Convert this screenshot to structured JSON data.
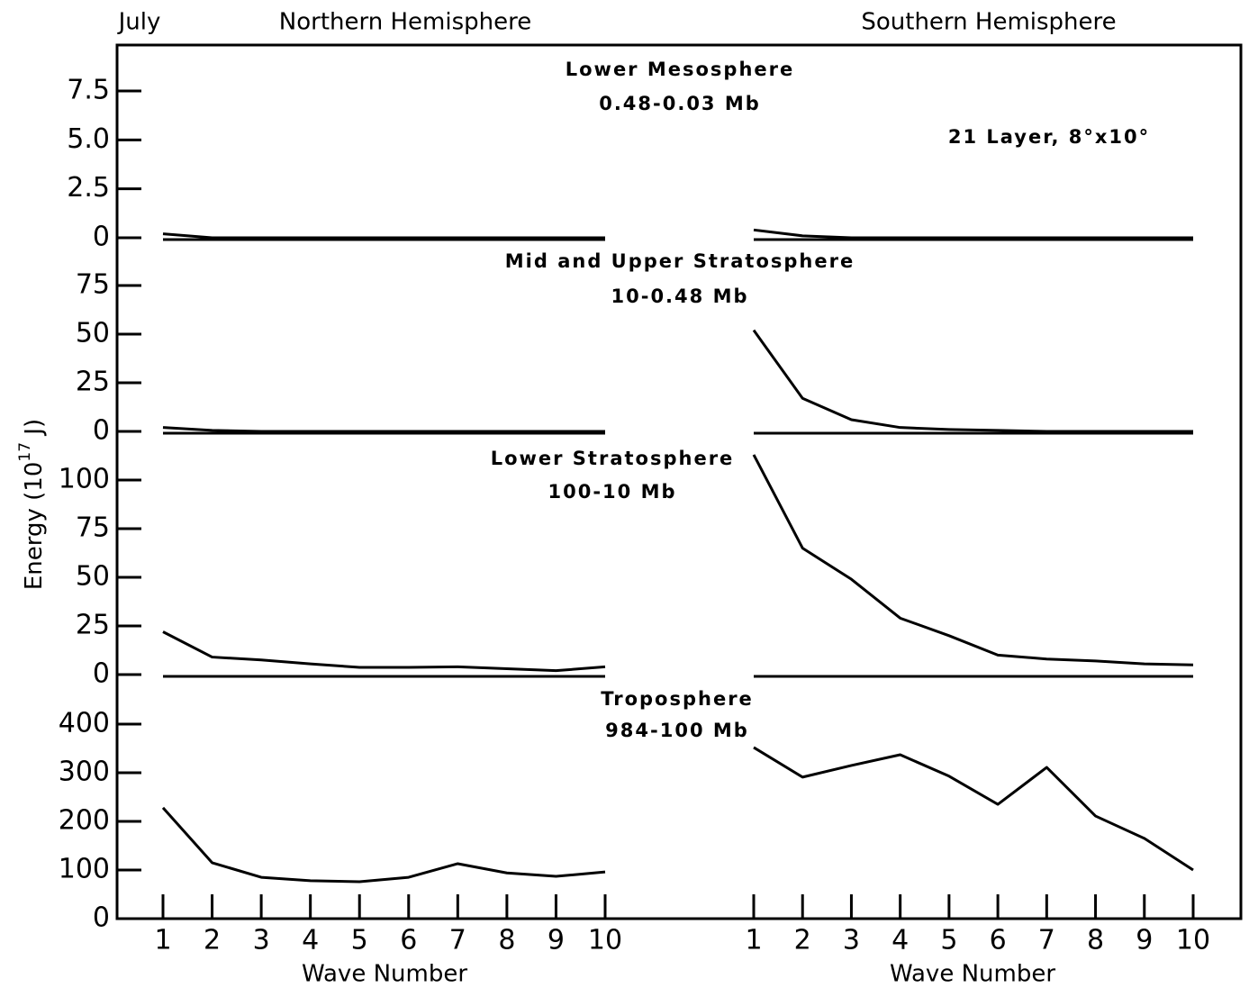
{
  "figure": {
    "label": "July",
    "hemispheres": [
      "Northern Hemisphere",
      "Southern Hemisphere"
    ],
    "xlabel": "Wave Number",
    "ylabel": [
      "Energy (10",
      "17",
      " J)"
    ],
    "annotation": "21 Layer, 8°x10°",
    "x": [
      1,
      2,
      3,
      4,
      5,
      6,
      7,
      8,
      9,
      10
    ],
    "xticks": [
      1,
      2,
      3,
      4,
      5,
      6,
      7,
      8,
      9,
      10
    ]
  },
  "chart_data": [
    {
      "type": "line",
      "title": "Lower Mesosphere",
      "subtitle": "0.48-0.03 Mb",
      "ylim": [
        0,
        7.5
      ],
      "yticks": [
        0,
        2.5,
        {
          "value": 5,
          "label": "5.0"
        },
        {
          "value": 7.5,
          "label": "7.5"
        }
      ],
      "color": "#000000",
      "series": [
        {
          "values": [
            0.2,
            0,
            0,
            0,
            0,
            0,
            0,
            0,
            0,
            0
          ]
        },
        {
          "values": [
            0.4,
            0.1,
            0,
            0,
            0,
            0,
            0,
            0,
            0,
            0
          ]
        }
      ]
    },
    {
      "type": "line",
      "title": "Mid and Upper Stratosphere",
      "subtitle": "10-0.48 Mb",
      "ylim": [
        0,
        75
      ],
      "yticks": [
        0,
        25,
        50,
        75
      ],
      "color": "#000000",
      "series": [
        {
          "values": [
            2,
            0.5,
            0,
            0,
            0,
            0,
            0,
            0,
            0,
            0
          ]
        },
        {
          "values": [
            52,
            17,
            6,
            2,
            1,
            0.5,
            0,
            0,
            0,
            0
          ]
        }
      ]
    },
    {
      "type": "line",
      "title": "Lower Stratosphere",
      "subtitle": "100-10 Mb",
      "ylim": [
        0,
        100
      ],
      "yticks": [
        0,
        25,
        50,
        75,
        100
      ],
      "color": "#000000",
      "series": [
        {
          "values": [
            22,
            9,
            7.5,
            5.5,
            3.7,
            3.7,
            4,
            3,
            2,
            4
          ]
        },
        {
          "values": [
            113,
            65,
            49,
            29,
            20,
            10,
            8,
            7,
            5.5,
            5
          ]
        }
      ]
    },
    {
      "type": "line",
      "title": "Troposphere",
      "subtitle": "984-100 Mb",
      "ylim": [
        0,
        400
      ],
      "yticks": [
        0,
        100,
        200,
        300,
        400
      ],
      "color": "#000000",
      "series": [
        {
          "values": [
            228,
            115,
            85,
            78,
            76,
            85,
            113,
            94,
            87,
            96
          ]
        },
        {
          "values": [
            352,
            291,
            315,
            337,
            293,
            235,
            311,
            211,
            165,
            100
          ]
        }
      ]
    }
  ]
}
